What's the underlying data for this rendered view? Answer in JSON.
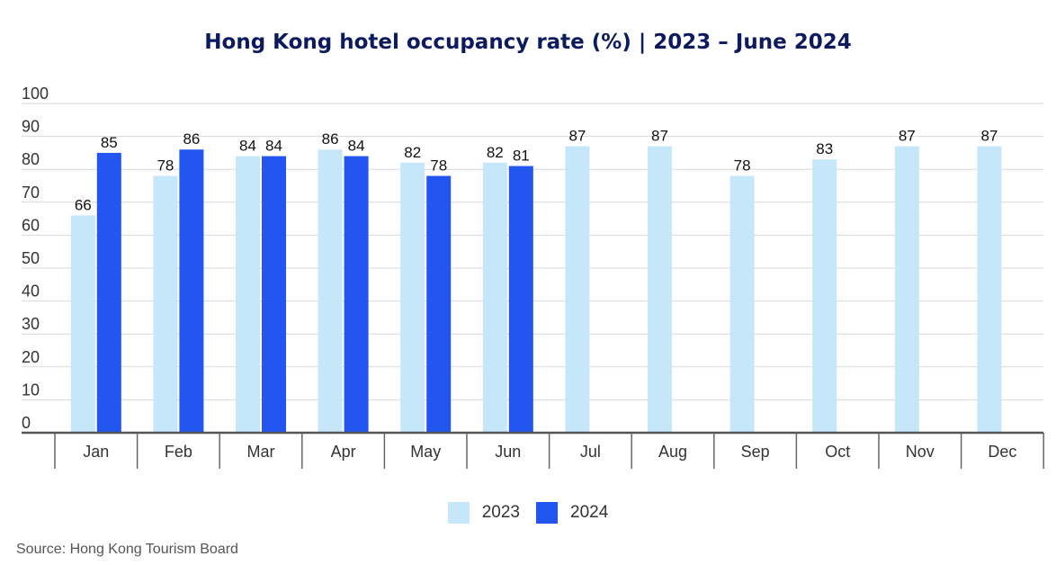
{
  "chart_data": {
    "type": "bar",
    "title": "Hong Kong hotel occupancy rate (%) | 2023 – June 2024",
    "categories": [
      "Jan",
      "Feb",
      "Mar",
      "Apr",
      "May",
      "Jun",
      "Jul",
      "Aug",
      "Sep",
      "Oct",
      "Nov",
      "Dec"
    ],
    "series": [
      {
        "name": "2023",
        "color": "#c6e6fa",
        "values": [
          66,
          78,
          84,
          86,
          82,
          82,
          87,
          87,
          78,
          83,
          87,
          87
        ]
      },
      {
        "name": "2024",
        "color": "#2356f0",
        "values": [
          85,
          86,
          84,
          84,
          78,
          81,
          null,
          null,
          null,
          null,
          null,
          null
        ]
      }
    ],
    "ylim": [
      0,
      100
    ],
    "yticks": [
      0,
      10,
      20,
      30,
      40,
      50,
      60,
      70,
      80,
      90,
      100
    ],
    "grid": true,
    "legend": "bottom-center",
    "xlabel": "",
    "ylabel": ""
  },
  "source": "Source: Hong Kong Tourism Board"
}
